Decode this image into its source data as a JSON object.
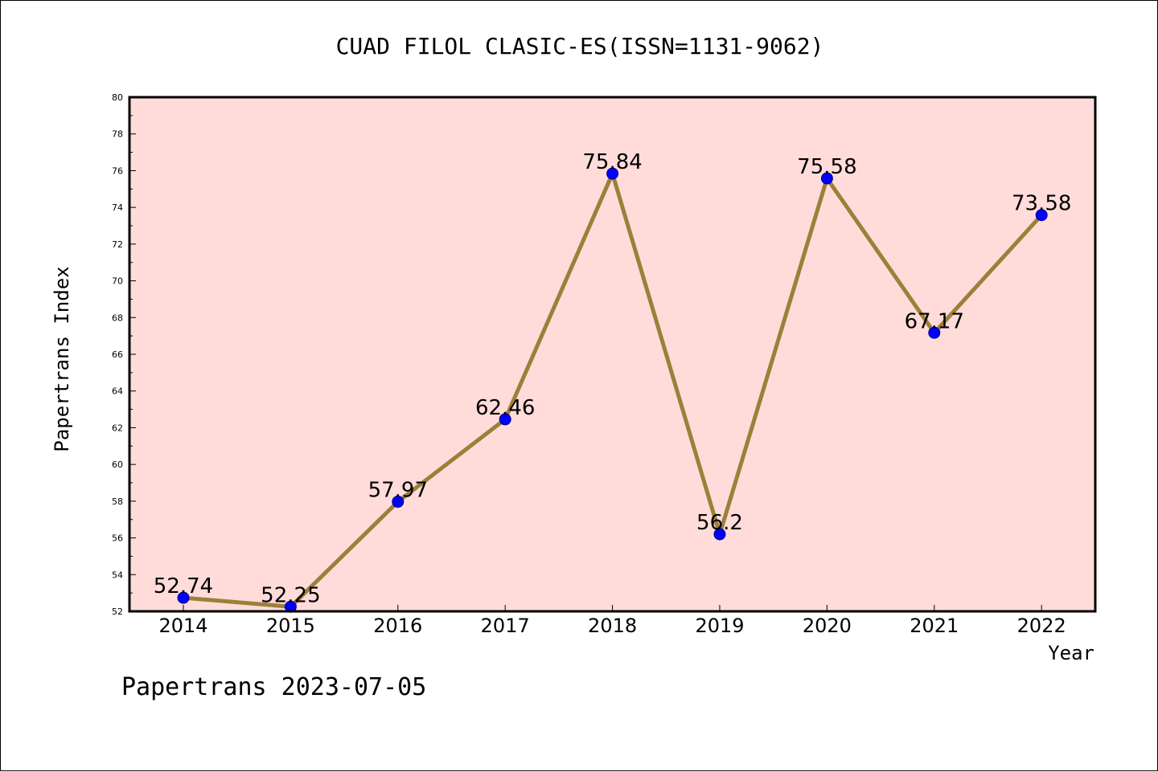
{
  "chart_data": {
    "type": "line",
    "title": "CUAD FILOL CLASIC-ES(ISSN=1131-9062)",
    "xlabel": "Year",
    "ylabel": "Papertrans Index",
    "footer": "Papertrans 2023-07-05",
    "categories": [
      "2014",
      "2015",
      "2016",
      "2017",
      "2018",
      "2019",
      "2020",
      "2021",
      "2022"
    ],
    "values": [
      52.74,
      52.25,
      57.97,
      62.46,
      75.84,
      56.2,
      75.58,
      67.17,
      73.58
    ],
    "value_labels": [
      "52.74",
      "52.25",
      "57.97",
      "62.46",
      "75.84",
      "56.2",
      "75.58",
      "67.17",
      "73.58"
    ],
    "ylim": [
      52,
      80
    ],
    "yticks": [
      "52",
      "54",
      "56",
      "58",
      "60",
      "62",
      "64",
      "66",
      "68",
      "70",
      "72",
      "74",
      "76",
      "78",
      "80"
    ],
    "grid": false,
    "legend": "none",
    "colors": {
      "plot_background": "#FFDCDA",
      "line": "#9C8039",
      "marker": "#0000FF",
      "marker_edge": "#00008B",
      "axes": "#000000"
    }
  }
}
